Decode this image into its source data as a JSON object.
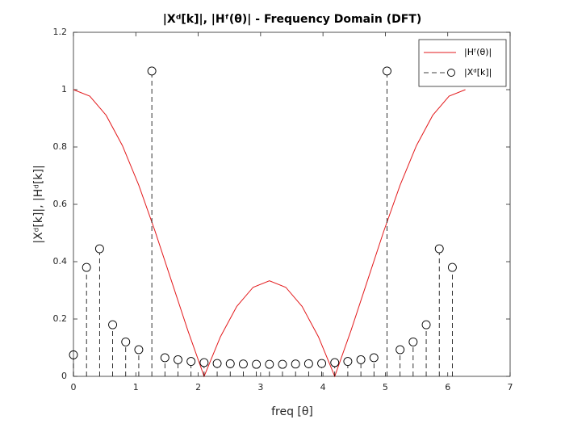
{
  "chart_data": {
    "type": "line",
    "title": "|Xᵈ[k]|, |Hᶠ(θ)| - Frequency Domain (DFT)",
    "xlabel": "freq [θ]",
    "ylabel": "|Xᵈ[k]|, |Hᵈ[k]|",
    "xlim": [
      0,
      7
    ],
    "ylim": [
      0,
      1.2
    ],
    "xticks": [
      0,
      1,
      2,
      3,
      4,
      5,
      6,
      7
    ],
    "yticks": [
      0,
      0.2,
      0.4,
      0.6,
      0.8,
      1,
      1.2
    ],
    "legend": "northeast",
    "grid": false,
    "series": [
      {
        "name": "|Hᶠ(θ)|",
        "color": "#e31a1c",
        "type": "line",
        "x": [
          0,
          0.2618,
          0.5236,
          0.7854,
          1.0472,
          1.309,
          1.5708,
          1.8326,
          2.0944,
          2.3562,
          2.618,
          2.8798,
          3.1416,
          3.4034,
          3.6652,
          3.927,
          4.1888,
          4.4506,
          4.7124,
          4.9742,
          5.236,
          5.4978,
          5.7596,
          6.0214,
          6.2832
        ],
        "values": [
          1,
          0.9773,
          0.9107,
          0.8047,
          0.6667,
          0.5059,
          0.3333,
          0.1608,
          0,
          0.1381,
          0.244,
          0.3106,
          0.3333,
          0.3106,
          0.244,
          0.1381,
          0,
          0.1608,
          0.3333,
          0.5059,
          0.6667,
          0.8047,
          0.9107,
          0.9773,
          1
        ]
      },
      {
        "name": "|Xᵈ[k]|",
        "color": "#000000",
        "type": "stem",
        "x": [
          0,
          0.2094,
          0.4189,
          0.6283,
          0.8378,
          1.0472,
          1.2566,
          1.4661,
          1.6755,
          1.885,
          2.0944,
          2.3038,
          2.5133,
          2.7227,
          2.9322,
          3.1416,
          3.351,
          3.5605,
          3.7699,
          3.9794,
          4.1888,
          4.3982,
          4.6077,
          4.8171,
          5.0265,
          5.236,
          5.4454,
          5.6549,
          5.8643,
          6.0737
        ],
        "values": [
          0.075,
          0.38,
          0.445,
          0.18,
          0.12,
          0.093,
          1.065,
          0.065,
          0.058,
          0.052,
          0.048,
          0.045,
          0.044,
          0.043,
          0.042,
          0.042,
          0.042,
          0.043,
          0.044,
          0.045,
          0.048,
          0.052,
          0.058,
          0.065,
          1.065,
          0.093,
          0.12,
          0.18,
          0.445,
          0.38
        ]
      }
    ]
  }
}
